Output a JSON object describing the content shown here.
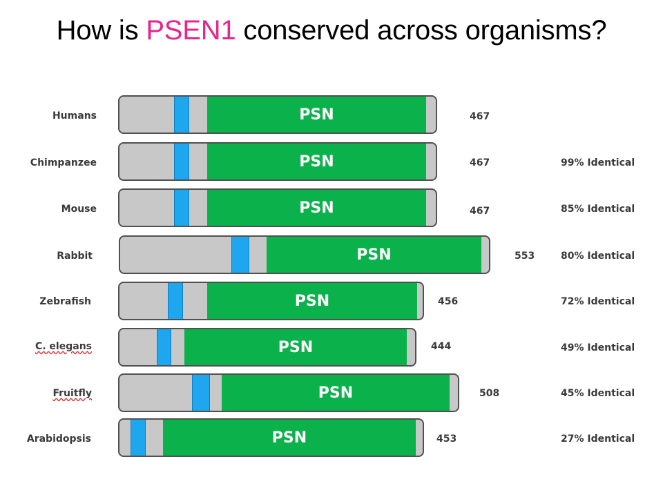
{
  "title": {
    "before": "How is ",
    "highlight": "PSEN1",
    "after": " conserved across organisms?",
    "highlight_color": "#e8258c"
  },
  "colors": {
    "domain": "#0bb14b",
    "transmembrane": "#1ea7ee",
    "bar": "#c8c8c8"
  },
  "rows": [
    {
      "organism": "Humans",
      "length": "467",
      "identity": ""
    },
    {
      "organism": "Chimpanzee",
      "length": "467",
      "identity": "99% Identical"
    },
    {
      "organism": "Mouse",
      "length": "467",
      "identity": "85% Identical"
    },
    {
      "organism": "Rabbit",
      "length": "553",
      "identity": "80% Identical"
    },
    {
      "organism": "Zebrafish",
      "length": "456",
      "identity": "72% Identical"
    },
    {
      "organism": "C. elegans",
      "length": "444",
      "identity": "49% Identical"
    },
    {
      "organism": "Fruitfly",
      "length": "508",
      "identity": "45% Identical"
    },
    {
      "organism": "Arabidopsis",
      "length": "453",
      "identity": "27% Identical"
    }
  ],
  "domain_label": "PSN"
}
